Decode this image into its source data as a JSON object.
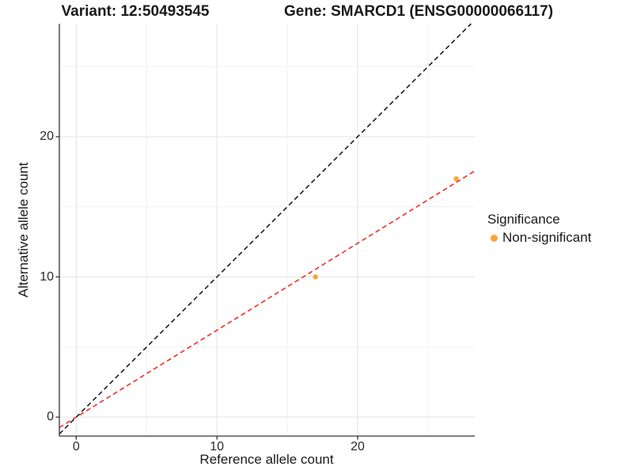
{
  "titles": {
    "variant": "Variant: 12:50493545",
    "gene": "Gene: SMARCD1 (ENSG00000066117)"
  },
  "chart_data": {
    "type": "scatter",
    "title": "Variant: 12:50493545 | Gene: SMARCD1 (ENSG00000066117)",
    "xlabel": "Reference allele count",
    "ylabel": "Alternative allele count",
    "xlim": [
      -1.2,
      28.32
    ],
    "ylim": [
      -1.35,
      28.06
    ],
    "x_major_ticks": [
      0,
      10,
      20
    ],
    "y_major_ticks": [
      0,
      10,
      20
    ],
    "x_minor_ticks": [
      5,
      15,
      25
    ],
    "y_minor_ticks": [
      5,
      15,
      25
    ],
    "grid": true,
    "legend_position": "right",
    "series": [
      {
        "name": "Non-significant",
        "points": [
          {
            "x": 17,
            "y": 10
          },
          {
            "x": 27,
            "y": 17
          }
        ]
      }
    ],
    "lines": [
      {
        "name": "identity-line",
        "slope": 1.0,
        "intercept": 0.0,
        "style": "dashed",
        "color": "#1c1c1c"
      },
      {
        "name": "fit-line",
        "slope": 0.62,
        "intercept": 0.0,
        "style": "dashed",
        "color": "#f52b2b"
      }
    ],
    "legend": {
      "title": "Significance",
      "entries": [
        {
          "label": "Non-significant",
          "color": "#fca336"
        }
      ]
    },
    "colors": {
      "point": "#fca336",
      "identity_line": "#1c1c1c",
      "fit_line": "#f52b2b",
      "axis": "#333333",
      "grid_major": "#e3e3e3",
      "grid_minor": "#f1f1f1"
    }
  }
}
